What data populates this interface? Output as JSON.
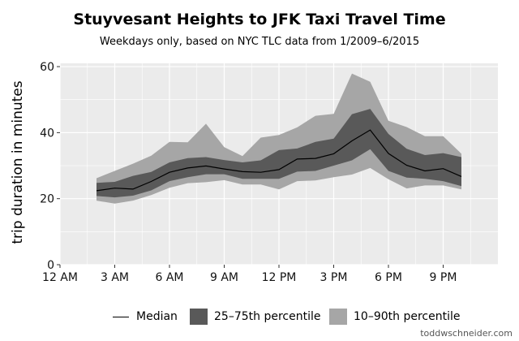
{
  "chart_data": {
    "type": "line",
    "title": "Stuyvesant Heights to JFK Taxi Travel Time",
    "subtitle": "Weekdays only, based on NYC TLC data from 1/2009–6/2015",
    "xlabel": "",
    "ylabel": "trip duration in minutes",
    "xlim": [
      0,
      24
    ],
    "ylim": [
      0,
      61
    ],
    "x_ticks": [
      0,
      3,
      6,
      9,
      12,
      15,
      18,
      21
    ],
    "x_tick_labels": [
      "12 AM",
      "3 AM",
      "6 AM",
      "9 AM",
      "12 PM",
      "3 PM",
      "6 PM",
      "9 PM"
    ],
    "y_ticks": [
      0,
      20,
      40,
      60
    ],
    "y_tick_labels": [
      "0",
      "20",
      "40",
      "60"
    ],
    "grid": true,
    "legend_position": "bottom",
    "x": [
      2,
      3,
      4,
      5,
      6,
      7,
      8,
      9,
      10,
      11,
      12,
      13,
      14,
      15,
      16,
      17,
      18,
      19,
      20,
      21,
      22
    ],
    "series": [
      {
        "name": "Median",
        "kind": "line",
        "color": "#000000",
        "values": [
          22.4,
          23.2,
          22.9,
          25.2,
          28.0,
          29.3,
          29.9,
          29.0,
          28.2,
          28.0,
          28.8,
          32.0,
          32.2,
          33.6,
          37.5,
          40.8,
          33.7,
          30.1,
          28.4,
          29.1,
          26.7
        ]
      },
      {
        "name": "25–75th percentile",
        "kind": "band",
        "color": "#595959",
        "lower": [
          20.8,
          20.4,
          20.9,
          22.5,
          25.3,
          26.5,
          27.4,
          27.4,
          26.0,
          26.0,
          26.0,
          28.2,
          28.4,
          30.0,
          31.6,
          35.0,
          28.4,
          26.4,
          26.0,
          25.3,
          23.8
        ],
        "upper": [
          24.8,
          25.1,
          26.9,
          28.1,
          31.0,
          32.3,
          32.6,
          31.7,
          31.0,
          31.6,
          34.7,
          35.2,
          37.2,
          38.2,
          45.6,
          47.2,
          39.6,
          35.1,
          33.2,
          33.8,
          32.6
        ]
      },
      {
        "name": "10–90th percentile",
        "kind": "band",
        "color": "#a6a6a6",
        "lower": [
          19.4,
          18.5,
          19.4,
          21.1,
          23.3,
          24.7,
          25.0,
          25.6,
          24.3,
          24.3,
          22.8,
          25.3,
          25.5,
          26.5,
          27.3,
          29.3,
          25.9,
          23.1,
          24.0,
          24.0,
          22.8
        ],
        "upper": [
          26.2,
          28.4,
          30.6,
          33.0,
          37.2,
          37.1,
          42.7,
          35.6,
          32.9,
          38.5,
          39.3,
          41.6,
          45.1,
          45.7,
          57.9,
          55.4,
          43.6,
          41.7,
          38.9,
          38.9,
          33.6
        ]
      }
    ]
  },
  "legend": {
    "median": "Median",
    "iqr": "25–75th percentile",
    "p1090": "10–90th percentile"
  },
  "credit": "toddwschneider.com",
  "colors": {
    "panel_bg": "#ebebeb",
    "grid": "#ffffff",
    "band_outer": "#a6a6a6",
    "band_inner": "#595959",
    "line": "#000000"
  }
}
